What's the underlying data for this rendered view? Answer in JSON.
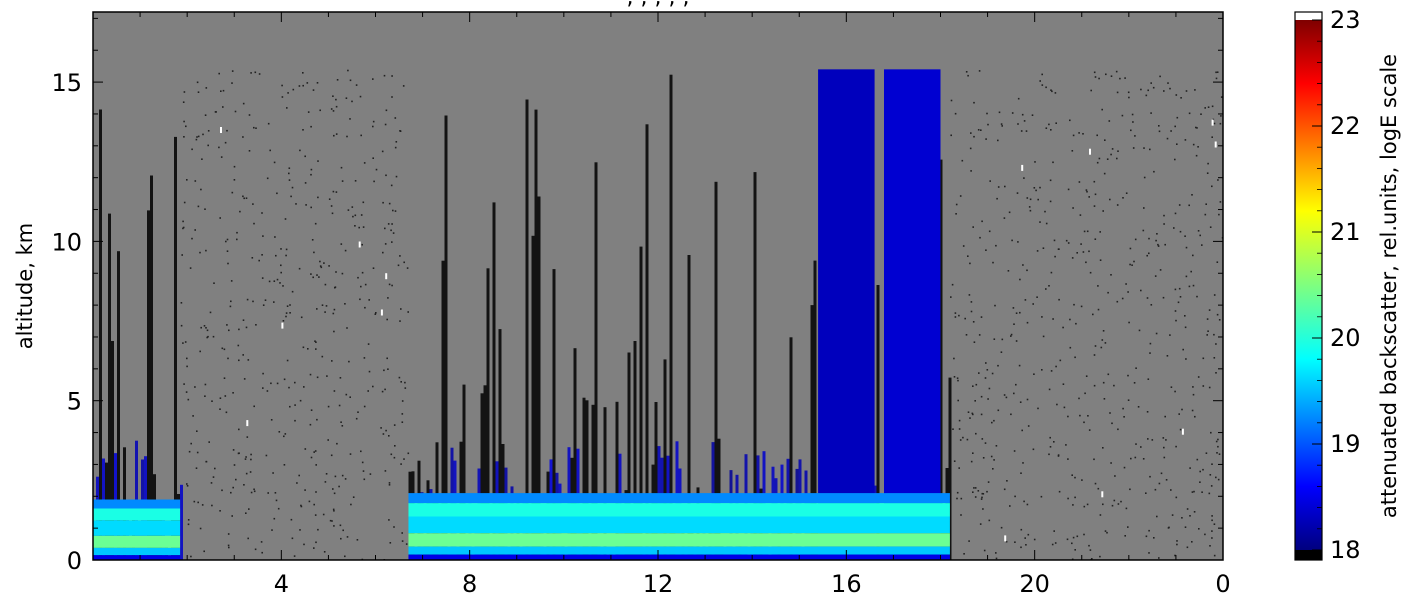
{
  "chart_data": {
    "type": "heatmap",
    "title": ", , , , ,",
    "ylabel": "altitude, km",
    "xlabel": "",
    "x_ticks": [
      "4",
      "8",
      "12",
      "16",
      "20",
      "0"
    ],
    "y_ticks": [
      "0",
      "5",
      "10",
      "15"
    ],
    "ylim": [
      0,
      17.2
    ],
    "colorbar": {
      "label": "attenuated backscatter, rel.units, logE scale",
      "ticks": [
        "18",
        "19",
        "20",
        "21",
        "22",
        "23"
      ],
      "range": [
        18,
        23
      ],
      "colormap": "jet",
      "under_color": "#000000",
      "over_color": "#ffffff",
      "background_color": "#808080"
    },
    "x_hours_sequence": [
      0,
      4,
      8,
      12,
      16,
      20,
      0
    ],
    "segments": [
      {
        "start_h": 0.0,
        "end_h": 1.85,
        "top_km": 15.4,
        "type": "cloudy_blue"
      },
      {
        "start_h": 1.85,
        "end_h": 6.7,
        "top_km": 15.4,
        "type": "noisy"
      },
      {
        "start_h": 6.7,
        "end_h": 18.2,
        "top_km": 15.4,
        "type": "cloudy_blue"
      },
      {
        "start_h": 18.2,
        "end_h": 24.0,
        "top_km": 15.4,
        "type": "noisy"
      }
    ],
    "boundary_layer": [
      {
        "start_h": 0.0,
        "end_h": 1.85,
        "top_km": 1.9
      },
      {
        "start_h": 6.7,
        "end_h": 18.2,
        "top_km": 2.1
      }
    ],
    "high_signal_regions": [
      {
        "start_h": 15.4,
        "end_h": 16.6,
        "top_km": 15.4,
        "level": 18.3
      },
      {
        "start_h": 16.8,
        "end_h": 18.0,
        "top_km": 15.4,
        "level": 18.4
      }
    ]
  }
}
